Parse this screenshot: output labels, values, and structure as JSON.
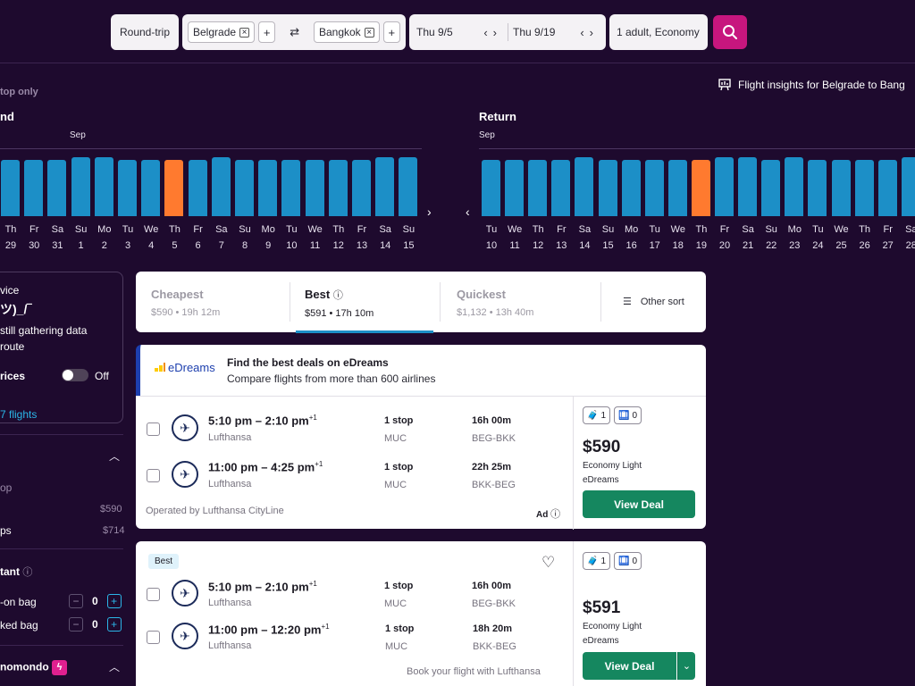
{
  "search": {
    "trip_type": "Round-trip",
    "origin": "Belgrade",
    "destination": "Bangkok",
    "depart_date": "Thu 9/5",
    "return_date": "Thu 9/19",
    "passengers": "1 adult, Economy"
  },
  "filters_top": {
    "nonstop_label": "top only",
    "insights_label": "Flight insights for Belgrade to Bang"
  },
  "outbound_chart": {
    "label": "nd",
    "month": "Sep",
    "days": [
      {
        "dow": "Th",
        "date": "29",
        "level": 0.96
      },
      {
        "dow": "Fr",
        "date": "30",
        "level": 0.96
      },
      {
        "dow": "Sa",
        "date": "31",
        "level": 0.96
      },
      {
        "dow": "Su",
        "date": "1",
        "level": 1.0
      },
      {
        "dow": "Mo",
        "date": "2",
        "level": 1.0
      },
      {
        "dow": "Tu",
        "date": "3",
        "level": 0.96
      },
      {
        "dow": "We",
        "date": "4",
        "level": 0.96
      },
      {
        "dow": "Th",
        "date": "5",
        "level": 0.96,
        "selected": true
      },
      {
        "dow": "Fr",
        "date": "6",
        "level": 0.96
      },
      {
        "dow": "Sa",
        "date": "7",
        "level": 1.0
      },
      {
        "dow": "Su",
        "date": "8",
        "level": 0.96
      },
      {
        "dow": "Mo",
        "date": "9",
        "level": 0.96
      },
      {
        "dow": "Tu",
        "date": "10",
        "level": 0.96
      },
      {
        "dow": "We",
        "date": "11",
        "level": 0.96
      },
      {
        "dow": "Th",
        "date": "12",
        "level": 0.96
      },
      {
        "dow": "Fr",
        "date": "13",
        "level": 0.96
      },
      {
        "dow": "Sa",
        "date": "14",
        "level": 1.0
      },
      {
        "dow": "Su",
        "date": "15",
        "level": 1.0
      }
    ]
  },
  "return_chart": {
    "label": "Return",
    "month": "Sep",
    "days": [
      {
        "dow": "Tu",
        "date": "10",
        "level": 0.96
      },
      {
        "dow": "We",
        "date": "11",
        "level": 0.96
      },
      {
        "dow": "Th",
        "date": "12",
        "level": 0.96
      },
      {
        "dow": "Fr",
        "date": "13",
        "level": 0.96
      },
      {
        "dow": "Sa",
        "date": "14",
        "level": 1.0
      },
      {
        "dow": "Su",
        "date": "15",
        "level": 0.96
      },
      {
        "dow": "Mo",
        "date": "16",
        "level": 0.96
      },
      {
        "dow": "Tu",
        "date": "17",
        "level": 0.96
      },
      {
        "dow": "We",
        "date": "18",
        "level": 0.96
      },
      {
        "dow": "Th",
        "date": "19",
        "level": 0.96,
        "selected": true
      },
      {
        "dow": "Fr",
        "date": "20",
        "level": 1.0
      },
      {
        "dow": "Sa",
        "date": "21",
        "level": 1.0
      },
      {
        "dow": "Su",
        "date": "22",
        "level": 0.96
      },
      {
        "dow": "Mo",
        "date": "23",
        "level": 1.0
      },
      {
        "dow": "Tu",
        "date": "24",
        "level": 0.96
      },
      {
        "dow": "We",
        "date": "25",
        "level": 0.96
      },
      {
        "dow": "Th",
        "date": "26",
        "level": 0.96
      },
      {
        "dow": "Fr",
        "date": "27",
        "level": 0.96
      },
      {
        "dow": "Sa",
        "date": "28",
        "level": 1.0
      }
    ]
  },
  "sidebar": {
    "advice_label": "vice",
    "shrug": "ツ)_/‾",
    "gathering_line1": "still gathering data",
    "gathering_line2": "route",
    "prices_label": "rices",
    "toggle_label": "Off",
    "flights_link": "7 flights",
    "stops_option1": "op",
    "stops_price1": "$590",
    "stops_option2": "ps",
    "stops_price2": "$714",
    "fee_section": "tant",
    "carry_on_label": "-on bag",
    "carry_on_value": "0",
    "checked_label": "ked bag",
    "checked_value": "0",
    "momondo_label": "nomondo"
  },
  "sort": {
    "tabs": [
      {
        "title": "Cheapest",
        "sub": "$590 • 19h 12m"
      },
      {
        "title": "Best",
        "sub": "$591 • 17h 10m"
      },
      {
        "title": "Quickest",
        "sub": "$1,132 • 13h 40m"
      }
    ],
    "other_label": "Other sort"
  },
  "ad": {
    "brand": "eDreams",
    "title": "Find the best deals on eDreams",
    "subtitle": "Compare flights from more than 600 airlines"
  },
  "result1": {
    "legs": [
      {
        "times": "5:10 pm – 2:10 pm",
        "plus": "+1",
        "airline": "Lufthansa",
        "stops": "1 stop",
        "via": "MUC",
        "duration": "16h 00m",
        "route": "BEG-BKK"
      },
      {
        "times": "11:00 pm – 4:25 pm",
        "plus": "+1",
        "airline": "Lufthansa",
        "stops": "1 stop",
        "via": "MUC",
        "duration": "22h 25m",
        "route": "BKK-BEG"
      }
    ],
    "operated_by": "Operated by Lufthansa CityLine",
    "ad_label": "Ad",
    "carry_on": "1",
    "checked": "0",
    "price": "$590",
    "fare": "Economy Light",
    "provider": "eDreams",
    "cta": "View Deal"
  },
  "result2": {
    "badge": "Best",
    "legs": [
      {
        "times": "5:10 pm – 2:10 pm",
        "plus": "+1",
        "airline": "Lufthansa",
        "stops": "1 stop",
        "via": "MUC",
        "duration": "16h 00m",
        "route": "BEG-BKK"
      },
      {
        "times": "11:00 pm – 12:20 pm",
        "plus": "+1",
        "airline": "Lufthansa",
        "stops": "1 stop",
        "via": "MUC",
        "duration": "18h 20m",
        "route": "BKK-BEG"
      }
    ],
    "book_with": "Book your flight with Lufthansa",
    "carry_on": "1",
    "checked": "0",
    "price": "$591",
    "fare": "Economy Light",
    "provider": "eDreams",
    "cta": "View Deal"
  },
  "colors": {
    "background": "#1e0a2e",
    "bar": "#1c8fc7",
    "bar_selected": "#ff7a2f",
    "search_button": "#c7167e",
    "deal_button": "#15875f"
  }
}
